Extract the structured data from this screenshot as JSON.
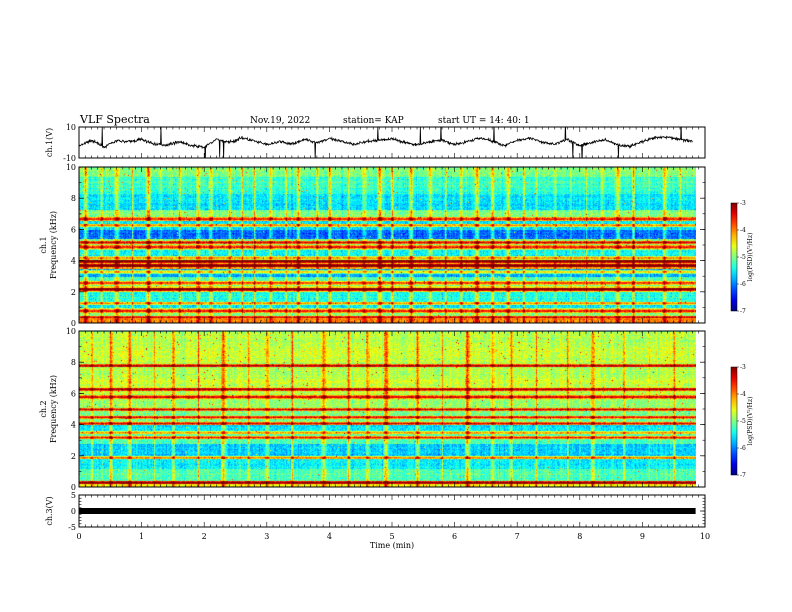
{
  "header": {
    "title": "VLF Spectra",
    "date": "Nov.19, 2022",
    "station": "station= KAP",
    "start_ut": "start UT =  14: 40: 1"
  },
  "chart_data": [
    {
      "id": "ch1-waveform",
      "type": "line",
      "ylabel": "ch.1(V)",
      "ylim": [
        -10,
        10
      ],
      "ytick_labels": [
        "10",
        "-10"
      ],
      "xlim": [
        0,
        10
      ],
      "line_color": "#000000",
      "trend": [
        [
          0.0,
          -2.5
        ],
        [
          0.2,
          1.5
        ],
        [
          0.4,
          -3
        ],
        [
          0.6,
          1
        ],
        [
          0.8,
          0.5
        ],
        [
          1.0,
          2
        ],
        [
          1.2,
          -1
        ],
        [
          1.4,
          -1.5
        ],
        [
          1.6,
          0.5
        ],
        [
          1.8,
          -2
        ],
        [
          2.0,
          -3
        ],
        [
          2.2,
          2
        ],
        [
          2.4,
          0
        ],
        [
          2.6,
          3
        ],
        [
          2.8,
          1
        ],
        [
          3.0,
          -1.5
        ],
        [
          3.2,
          0.5
        ],
        [
          3.4,
          -1
        ],
        [
          3.6,
          2
        ],
        [
          3.8,
          0
        ],
        [
          4.0,
          2.5
        ],
        [
          4.2,
          0.5
        ],
        [
          4.4,
          -1
        ],
        [
          4.6,
          0.5
        ],
        [
          4.8,
          1.5
        ],
        [
          5.0,
          2.5
        ],
        [
          5.2,
          0
        ],
        [
          5.4,
          -1.5
        ],
        [
          5.6,
          0.5
        ],
        [
          5.8,
          1.5
        ],
        [
          6.0,
          -1.5
        ],
        [
          6.2,
          0.5
        ],
        [
          6.4,
          3
        ],
        [
          6.6,
          1
        ],
        [
          6.8,
          -2
        ],
        [
          7.0,
          1.5
        ],
        [
          7.2,
          3
        ],
        [
          7.4,
          0
        ],
        [
          7.6,
          -1
        ],
        [
          7.8,
          2
        ],
        [
          8.0,
          -2
        ],
        [
          8.2,
          0
        ],
        [
          8.4,
          2
        ],
        [
          8.6,
          -1.5
        ],
        [
          8.8,
          -2.5
        ],
        [
          9.0,
          0.5
        ],
        [
          9.2,
          3
        ],
        [
          9.4,
          3.5
        ],
        [
          9.6,
          2
        ],
        [
          9.8,
          1
        ]
      ]
    },
    {
      "id": "ch1-spectrogram",
      "type": "heatmap",
      "ylabel_top": "ch.1",
      "ylabel": "Frequency (kHz)",
      "ylim": [
        0,
        10
      ],
      "ytick_labels": [
        "0",
        "2",
        "4",
        "6",
        "8",
        "10"
      ],
      "xlim": [
        0,
        10
      ],
      "data_extent_min": 9.85,
      "colorbar": {
        "label": "log(PSD)(V²/Hz)",
        "range": [
          -7,
          -3
        ],
        "tick_labels": [
          "-3",
          "-4",
          "-5",
          "-6",
          "-7"
        ]
      },
      "bands_log_psd": [
        [
          0.0,
          0.3,
          -4.0
        ],
        [
          0.3,
          1.0,
          -5.0
        ],
        [
          1.0,
          1.4,
          -5.6
        ],
        [
          1.4,
          2.0,
          -5.4
        ],
        [
          2.0,
          2.4,
          -4.4
        ],
        [
          2.4,
          3.0,
          -5.2
        ],
        [
          3.0,
          3.5,
          -5.9
        ],
        [
          3.5,
          4.1,
          -4.2
        ],
        [
          4.1,
          4.7,
          -5.5
        ],
        [
          4.7,
          5.4,
          -5.0
        ],
        [
          5.4,
          6.0,
          -6.1
        ],
        [
          6.0,
          6.6,
          -5.6
        ],
        [
          6.6,
          7.3,
          -5.0
        ],
        [
          7.3,
          8.3,
          -5.6
        ],
        [
          8.3,
          9.4,
          -5.3
        ],
        [
          9.4,
          10.0,
          -5.0
        ]
      ],
      "lines_khz": [
        0.4,
        0.8,
        1.3,
        2.2,
        2.6,
        3.3,
        3.7,
        4.0,
        4.2,
        4.9,
        5.2,
        6.3,
        6.7
      ],
      "transients_min": [
        0.1,
        0.35,
        0.6,
        0.85,
        1.1,
        1.3,
        1.6,
        1.9,
        2.1,
        2.4,
        2.6,
        2.8,
        3.05,
        3.3,
        3.5,
        3.8,
        4.0,
        4.3,
        4.55,
        4.8,
        5.0,
        5.3,
        5.6,
        5.85,
        6.1,
        6.35,
        6.6,
        6.85,
        7.1,
        7.3,
        7.6,
        7.85,
        8.1,
        8.35,
        8.6,
        8.85,
        9.1,
        9.35,
        9.6
      ]
    },
    {
      "id": "ch2-spectrogram",
      "type": "heatmap",
      "ylabel_top": "ch.2",
      "ylabel": "Frequency (kHz)",
      "ylim": [
        0,
        10
      ],
      "ytick_labels": [
        "0",
        "2",
        "4",
        "6",
        "8",
        "10"
      ],
      "xlim": [
        0,
        10
      ],
      "data_extent_min": 9.85,
      "colorbar": {
        "label": "log(PSD)(V²/Hz)",
        "range": [
          -7,
          -3
        ],
        "tick_labels": [
          "-3",
          "-4",
          "-5",
          "-6",
          "-7"
        ]
      },
      "bands_log_psd": [
        [
          0.0,
          0.4,
          -4.5
        ],
        [
          0.4,
          1.2,
          -5.2
        ],
        [
          1.2,
          2.0,
          -5.5
        ],
        [
          2.0,
          2.8,
          -5.7
        ],
        [
          2.8,
          3.4,
          -5.2
        ],
        [
          3.4,
          4.0,
          -5.6
        ],
        [
          4.0,
          5.0,
          -5.0
        ],
        [
          5.0,
          6.0,
          -4.9
        ],
        [
          6.0,
          7.0,
          -4.7
        ],
        [
          7.0,
          8.0,
          -4.8
        ],
        [
          8.0,
          9.0,
          -4.7
        ],
        [
          9.0,
          10.0,
          -4.8
        ]
      ],
      "lines_khz": [
        0.3,
        1.9,
        3.2,
        3.5,
        4.1,
        4.5,
        5.0,
        5.8,
        6.3,
        7.8
      ],
      "transients_min": [
        0.2,
        0.5,
        0.8,
        1.2,
        1.5,
        1.9,
        2.3,
        2.7,
        3.0,
        3.4,
        3.9,
        4.3,
        4.6,
        4.9,
        5.4,
        5.8,
        6.2,
        6.6,
        6.9,
        7.3,
        7.8,
        8.2,
        8.7,
        9.1,
        9.5
      ]
    },
    {
      "id": "ch3-waveform",
      "type": "line",
      "ylabel": "ch.3(V)",
      "ylim": [
        -5,
        5
      ],
      "ytick_labels": [
        "5",
        "0",
        "-5"
      ],
      "xlim": [
        0,
        10
      ],
      "xlabel": "Time (min)",
      "xtick_labels": [
        "0",
        "1",
        "2",
        "3",
        "4",
        "5",
        "6",
        "7",
        "8",
        "9",
        "10"
      ],
      "line_color": "#000000",
      "trend": [
        [
          0.0,
          0.0
        ],
        [
          9.85,
          0.0
        ]
      ]
    }
  ]
}
